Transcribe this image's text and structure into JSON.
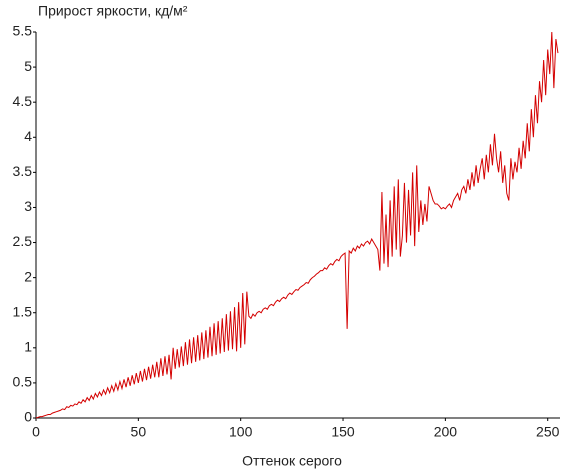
{
  "chart_data": {
    "type": "line",
    "title": "Прирост яркости, кд/м²",
    "x_label": "Оттенок серого",
    "x": [
      0,
      1,
      2,
      3,
      4,
      5,
      6,
      7,
      8,
      9,
      10,
      11,
      12,
      13,
      14,
      15,
      16,
      17,
      18,
      19,
      20,
      21,
      22,
      23,
      24,
      25,
      26,
      27,
      28,
      29,
      30,
      31,
      32,
      33,
      34,
      35,
      36,
      37,
      38,
      39,
      40,
      41,
      42,
      43,
      44,
      45,
      46,
      47,
      48,
      49,
      50,
      51,
      52,
      53,
      54,
      55,
      56,
      57,
      58,
      59,
      60,
      61,
      62,
      63,
      64,
      65,
      66,
      67,
      68,
      69,
      70,
      71,
      72,
      73,
      74,
      75,
      76,
      77,
      78,
      79,
      80,
      81,
      82,
      83,
      84,
      85,
      86,
      87,
      88,
      89,
      90,
      91,
      92,
      93,
      94,
      95,
      96,
      97,
      98,
      99,
      100,
      101,
      102,
      103,
      104,
      105,
      106,
      107,
      108,
      109,
      110,
      111,
      112,
      113,
      114,
      115,
      116,
      117,
      118,
      119,
      120,
      121,
      122,
      123,
      124,
      125,
      126,
      127,
      128,
      129,
      130,
      131,
      132,
      133,
      134,
      135,
      136,
      137,
      138,
      139,
      140,
      141,
      142,
      143,
      144,
      145,
      146,
      147,
      148,
      149,
      150,
      151,
      152,
      153,
      154,
      155,
      156,
      157,
      158,
      159,
      160,
      161,
      162,
      163,
      164,
      165,
      166,
      167,
      168,
      169,
      170,
      171,
      172,
      173,
      174,
      175,
      176,
      177,
      178,
      179,
      180,
      181,
      182,
      183,
      184,
      185,
      186,
      187,
      188,
      189,
      190,
      191,
      192,
      193,
      194,
      195,
      196,
      197,
      198,
      199,
      200,
      201,
      202,
      203,
      204,
      205,
      206,
      207,
      208,
      209,
      210,
      211,
      212,
      213,
      214,
      215,
      216,
      217,
      218,
      219,
      220,
      221,
      222,
      223,
      224,
      225,
      226,
      227,
      228,
      229,
      230,
      231,
      232,
      233,
      234,
      235,
      236,
      237,
      238,
      239,
      240,
      241,
      242,
      243,
      244,
      245,
      246,
      247,
      248,
      249,
      250,
      251,
      252,
      253,
      254,
      255
    ],
    "series": [
      {
        "color": "#d40000",
        "values": [
          0.0,
          0.01,
          0.02,
          0.02,
          0.03,
          0.04,
          0.05,
          0.05,
          0.07,
          0.08,
          0.09,
          0.1,
          0.11,
          0.13,
          0.12,
          0.16,
          0.15,
          0.18,
          0.17,
          0.2,
          0.19,
          0.23,
          0.21,
          0.26,
          0.23,
          0.29,
          0.25,
          0.32,
          0.27,
          0.35,
          0.3,
          0.37,
          0.32,
          0.4,
          0.34,
          0.43,
          0.36,
          0.46,
          0.38,
          0.49,
          0.4,
          0.52,
          0.42,
          0.55,
          0.44,
          0.58,
          0.46,
          0.61,
          0.48,
          0.64,
          0.5,
          0.67,
          0.52,
          0.7,
          0.54,
          0.73,
          0.56,
          0.76,
          0.58,
          0.8,
          0.58,
          0.85,
          0.6,
          0.88,
          0.62,
          0.9,
          0.55,
          1.0,
          0.7,
          0.98,
          0.72,
          1.02,
          0.74,
          1.08,
          0.76,
          1.12,
          0.78,
          1.15,
          0.8,
          1.18,
          0.82,
          1.22,
          0.84,
          1.25,
          0.86,
          1.3,
          0.88,
          1.35,
          0.9,
          1.38,
          0.92,
          1.42,
          0.94,
          1.48,
          0.96,
          1.52,
          0.98,
          1.58,
          0.95,
          1.65,
          1.0,
          1.78,
          1.05,
          1.8,
          1.45,
          1.42,
          1.48,
          1.45,
          1.5,
          1.52,
          1.5,
          1.55,
          1.57,
          1.55,
          1.6,
          1.62,
          1.6,
          1.65,
          1.68,
          1.66,
          1.7,
          1.72,
          1.7,
          1.75,
          1.78,
          1.76,
          1.8,
          1.83,
          1.82,
          1.86,
          1.88,
          1.9,
          1.93,
          1.92,
          1.97,
          2.0,
          2.02,
          2.05,
          2.07,
          2.1,
          2.1,
          2.14,
          2.12,
          2.17,
          2.2,
          2.18,
          2.23,
          2.26,
          2.24,
          2.3,
          2.33,
          2.35,
          1.27,
          2.38,
          2.35,
          2.42,
          2.38,
          2.45,
          2.42,
          2.48,
          2.45,
          2.5,
          2.52,
          2.48,
          2.55,
          2.5,
          2.45,
          2.4,
          2.1,
          3.22,
          2.2,
          2.9,
          2.15,
          3.1,
          2.3,
          3.3,
          2.4,
          3.4,
          2.3,
          2.6,
          3.35,
          2.5,
          3.25,
          2.6,
          3.5,
          2.45,
          3.6,
          2.65,
          3.1,
          2.75,
          3.05,
          2.8,
          3.3,
          3.2,
          3.1,
          3.05,
          3.05,
          3.02,
          2.98,
          3.0,
          2.98,
          3.02,
          3.05,
          3.0,
          3.1,
          3.15,
          3.2,
          3.1,
          3.25,
          3.3,
          3.2,
          3.4,
          3.25,
          3.5,
          3.3,
          3.6,
          3.35,
          3.55,
          3.7,
          3.4,
          3.75,
          3.5,
          3.9,
          3.6,
          4.05,
          3.7,
          3.5,
          3.8,
          3.35,
          3.6,
          3.2,
          3.1,
          3.7,
          3.4,
          3.65,
          3.5,
          3.85,
          3.55,
          3.95,
          3.7,
          4.2,
          3.8,
          4.4,
          4.0,
          4.6,
          4.2,
          4.8,
          4.5,
          5.1,
          4.6,
          5.25,
          4.9,
          5.5,
          4.7,
          5.4,
          5.2
        ]
      }
    ],
    "xlim": [
      0,
      256
    ],
    "xticks": [
      0,
      50,
      100,
      150,
      200,
      250
    ],
    "ylim": [
      0,
      5.5
    ],
    "yticks": [
      0,
      0.5,
      1,
      1.5,
      2,
      2.5,
      3,
      3.5,
      4,
      4.5,
      5,
      5.5
    ]
  }
}
